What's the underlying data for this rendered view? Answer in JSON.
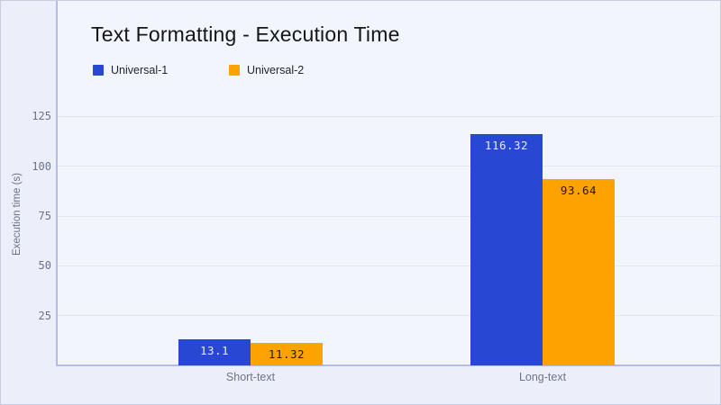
{
  "page": {
    "background": "#eceffa",
    "plot_background": "#f3f5fc",
    "border_color": "#c9ccdc",
    "axis_line_color": "#b3bbe6",
    "gridline_color": "#e3e6f5"
  },
  "chart_data": {
    "type": "bar",
    "title": "Text Formatting - Execution Time",
    "ylabel": "Execution time (s)",
    "xlabel": "",
    "categories": [
      "Short-text",
      "Long-text"
    ],
    "series": [
      {
        "name": "Universal-1",
        "color": "#2847d3",
        "values": [
          13.1,
          116.32
        ],
        "value_labels": [
          "13.1",
          "116.32"
        ],
        "value_label_color": "#e9ecfb"
      },
      {
        "name": "Universal-2",
        "color": "#fda301",
        "values": [
          11.32,
          93.64
        ],
        "value_labels": [
          "11.32",
          "93.64"
        ],
        "value_label_color": "#17191f"
      }
    ],
    "yticks": [
      25,
      50,
      75,
      100,
      125
    ],
    "ylim": [
      0,
      183
    ],
    "grid": "horizontal",
    "legend_position": "top-left"
  }
}
